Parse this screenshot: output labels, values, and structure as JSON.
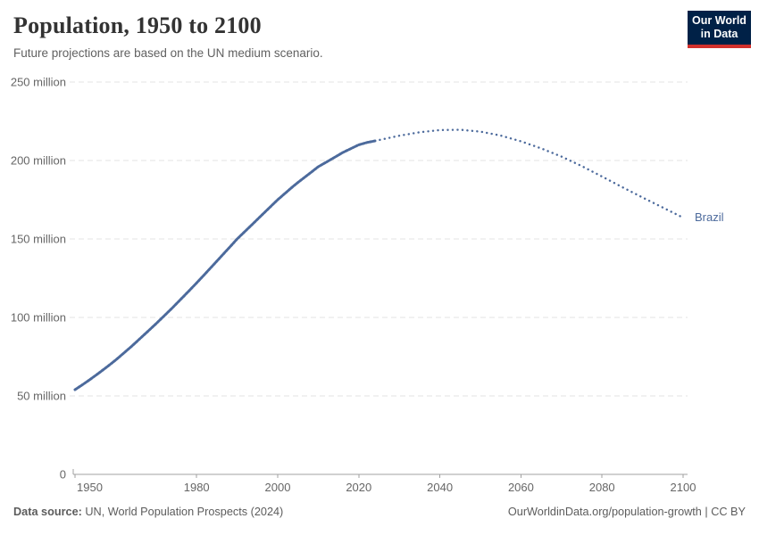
{
  "header": {
    "title": "Population, 1950 to 2100",
    "subtitle": "Future projections are based on the UN medium scenario.",
    "logo": {
      "line1": "Our World",
      "line2": "in Data",
      "bg_color": "#002147",
      "accent_color": "#d2302c"
    }
  },
  "chart_data": {
    "type": "line",
    "title": "Population, 1950 to 2100",
    "subtitle": "Future projections are based on the UN medium scenario.",
    "entity": "Brazil",
    "end_label": "Brazil",
    "unit": "million",
    "xlim": [
      1950,
      2100
    ],
    "ylim": [
      0,
      250
    ],
    "xticks": [
      1950,
      1980,
      2000,
      2020,
      2040,
      2060,
      2080,
      2100
    ],
    "yticks": [
      {
        "value": 0,
        "label": "0"
      },
      {
        "value": 50,
        "label": "50 million"
      },
      {
        "value": 100,
        "label": "100 million"
      },
      {
        "value": 150,
        "label": "150 million"
      },
      {
        "value": 200,
        "label": "200 million"
      },
      {
        "value": 250,
        "label": "250 million"
      }
    ],
    "grid": true,
    "legend_position": "end-of-line label",
    "colors": {
      "line": "#4C6A9C",
      "grid": "#e3e3e3",
      "axis": "#a1a1a1",
      "tick_label": "#666666"
    },
    "series": [
      {
        "name": "Brazil (historical estimates)",
        "style": "solid",
        "points": [
          [
            1950,
            54.0
          ],
          [
            1952,
            57.4
          ],
          [
            1954,
            61.0
          ],
          [
            1956,
            64.8
          ],
          [
            1958,
            68.7
          ],
          [
            1960,
            72.8
          ],
          [
            1962,
            77.2
          ],
          [
            1964,
            81.7
          ],
          [
            1966,
            86.4
          ],
          [
            1968,
            91.2
          ],
          [
            1970,
            96.0
          ],
          [
            1972,
            101.0
          ],
          [
            1974,
            106.1
          ],
          [
            1976,
            111.3
          ],
          [
            1978,
            116.6
          ],
          [
            1980,
            122.0
          ],
          [
            1982,
            127.5
          ],
          [
            1984,
            133.1
          ],
          [
            1986,
            138.7
          ],
          [
            1988,
            144.3
          ],
          [
            1990,
            150.0
          ],
          [
            1992,
            155.0
          ],
          [
            1994,
            160.0
          ],
          [
            1996,
            165.0
          ],
          [
            1998,
            170.0
          ],
          [
            2000,
            175.0
          ],
          [
            2002,
            179.5
          ],
          [
            2004,
            184.0
          ],
          [
            2006,
            188.0
          ],
          [
            2008,
            192.0
          ],
          [
            2010,
            196.0
          ],
          [
            2012,
            199.0
          ],
          [
            2014,
            202.0
          ],
          [
            2016,
            205.0
          ],
          [
            2018,
            207.5
          ],
          [
            2020,
            210.0
          ],
          [
            2022,
            211.5
          ],
          [
            2024,
            212.5
          ]
        ]
      },
      {
        "name": "Brazil (UN medium projection)",
        "style": "dotted",
        "points": [
          [
            2024,
            212.5
          ],
          [
            2030,
            215.8
          ],
          [
            2035,
            218.0
          ],
          [
            2040,
            219.4
          ],
          [
            2045,
            219.6
          ],
          [
            2050,
            218.4
          ],
          [
            2055,
            215.9
          ],
          [
            2060,
            212.2
          ],
          [
            2065,
            207.7
          ],
          [
            2070,
            202.5
          ],
          [
            2075,
            196.4
          ],
          [
            2080,
            189.8
          ],
          [
            2085,
            183.0
          ],
          [
            2090,
            176.4
          ],
          [
            2095,
            170.0
          ],
          [
            2100,
            163.6
          ]
        ]
      }
    ]
  },
  "footer": {
    "source_label": "Data source:",
    "source_text": " UN, World Population Prospects (2024)",
    "right": "OurWorldinData.org/population-growth | CC BY"
  }
}
